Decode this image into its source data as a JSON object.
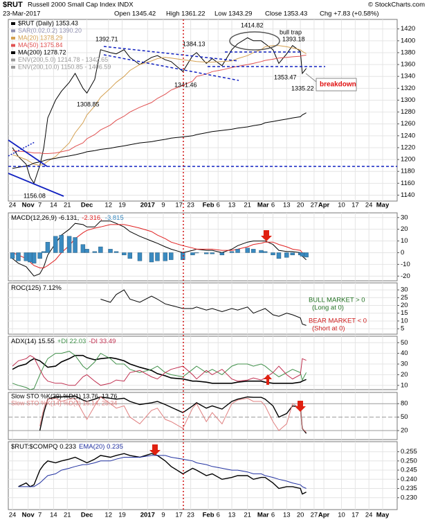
{
  "header": {
    "symbol": "$RUT",
    "name": "Russell 2000 Small Cap Index INDX",
    "source": "© StockCharts.com",
    "date": "23-Mar-2017",
    "open": "Open 1345.42",
    "high": "High 1361.22",
    "low": "Low 1343.29",
    "close": "Close 1353.43",
    "change": "Chg +7.83 (+0.58%)"
  },
  "chart_data": [
    {
      "type": "line",
      "grid": true,
      "x": [
        "2016-10-24",
        "2016-10-27",
        "2016-10-31",
        "2016-11-02",
        "2016-11-04",
        "2016-11-07",
        "2016-11-09",
        "2016-11-11",
        "2016-11-15",
        "2016-11-18",
        "2016-11-22",
        "2016-11-25",
        "2016-11-29",
        "2016-12-01",
        "2016-12-05",
        "2016-12-08",
        "2016-12-13",
        "2016-12-16",
        "2016-12-20",
        "2016-12-23",
        "2016-12-28",
        "2017-01-03",
        "2017-01-06",
        "2017-01-10",
        "2017-01-13",
        "2017-01-19",
        "2017-01-24",
        "2017-01-26",
        "2017-01-31",
        "2017-02-03",
        "2017-02-08",
        "2017-02-13",
        "2017-02-16",
        "2017-02-21",
        "2017-02-24",
        "2017-02-28",
        "2017-03-02",
        "2017-03-06",
        "2017-03-09",
        "2017-03-13",
        "2017-03-16",
        "2017-03-20",
        "2017-03-21",
        "2017-03-23"
      ],
      "xticks": [
        {
          "value": "2016-10-24",
          "label": "24"
        },
        {
          "value": "2016-11-01",
          "label": "Nov"
        },
        {
          "value": "2016-11-07",
          "label": "7"
        },
        {
          "value": "2016-11-14",
          "label": "14"
        },
        {
          "value": "2016-11-21",
          "label": "21"
        },
        {
          "value": "2016-12-01",
          "label": "Dec"
        },
        {
          "value": "2016-12-12",
          "label": "12"
        },
        {
          "value": "2016-12-19",
          "label": "19"
        },
        {
          "value": "2017-01-01",
          "label": "2017"
        },
        {
          "value": "2017-01-09",
          "label": "9"
        },
        {
          "value": "2017-01-17",
          "label": "17"
        },
        {
          "value": "2017-01-23",
          "label": "23"
        },
        {
          "value": "2017-02-01",
          "label": "Feb"
        },
        {
          "value": "2017-02-06",
          "label": "6"
        },
        {
          "value": "2017-02-13",
          "label": "13"
        },
        {
          "value": "2017-02-21",
          "label": "21"
        },
        {
          "value": "2017-03-01",
          "label": "Mar"
        },
        {
          "value": "2017-03-06",
          "label": "6"
        },
        {
          "value": "2017-03-13",
          "label": "13"
        },
        {
          "value": "2017-03-20",
          "label": "20"
        },
        {
          "value": "2017-03-27",
          "label": "27"
        },
        {
          "value": "2017-04-01",
          "label": "Apr"
        },
        {
          "value": "2017-04-10",
          "label": "10"
        },
        {
          "value": "2017-04-17",
          "label": "17"
        },
        {
          "value": "2017-04-24",
          "label": "24"
        },
        {
          "value": "2017-05-01",
          "label": "May"
        }
      ],
      "ylim": [
        1130,
        1436
      ],
      "yticks": [
        1140,
        1160,
        1180,
        1200,
        1220,
        1240,
        1260,
        1280,
        1300,
        1320,
        1340,
        1360,
        1380,
        1400,
        1420
      ],
      "series": [
        {
          "name": "$RUT (Daily) 1353.43",
          "color": "#000000",
          "values": [
            1220,
            1205,
            1192,
            1170,
            1160,
            1190,
            1220,
            1270,
            1300,
            1315,
            1330,
            1345,
            1320,
            1312,
            1335,
            1385,
            1380,
            1378,
            1385,
            1372,
            1360,
            1372,
            1375,
            1368,
            1365,
            1348,
            1375,
            1380,
            1362,
            1370,
            1358,
            1385,
            1395,
            1405,
            1400,
            1400,
            1395,
            1385,
            1362,
            1378,
            1392,
            1382,
            1345,
            1353.43
          ]
        },
        {
          "name": "MA(20) 1378.29",
          "color": "#d4a050",
          "values": [
            1208,
            1205,
            1200,
            1196,
            1192,
            1190,
            1192,
            1197,
            1205,
            1215,
            1228,
            1245,
            1262,
            1275,
            1290,
            1305,
            1320,
            1330,
            1340,
            1350,
            1360,
            1366,
            1370,
            1372,
            1371,
            1368,
            1366,
            1365,
            1364,
            1364,
            1365,
            1366,
            1370,
            1375,
            1380,
            1385,
            1390,
            1392,
            1392,
            1390,
            1388,
            1385,
            1382,
            1378.29
          ]
        },
        {
          "name": "MA(50) 1375.84",
          "color": "#e05050",
          "values": [
            1215,
            1214,
            1213,
            1212,
            1211,
            1211,
            1210,
            1210,
            1211,
            1213,
            1216,
            1222,
            1228,
            1235,
            1242,
            1250,
            1258,
            1266,
            1273,
            1280,
            1288,
            1296,
            1303,
            1310,
            1317,
            1325,
            1332,
            1340,
            1344,
            1348,
            1351,
            1355,
            1357,
            1360,
            1362,
            1365,
            1367,
            1369,
            1371,
            1372,
            1373,
            1374,
            1375,
            1375.84
          ]
        },
        {
          "name": "MA(200) 1278.72",
          "color": "#000000",
          "values": [
            1185,
            1187,
            1189,
            1191,
            1194,
            1196,
            1198,
            1200,
            1202,
            1204,
            1206,
            1208,
            1211,
            1213,
            1215,
            1217,
            1219,
            1221,
            1223,
            1225,
            1228,
            1230,
            1232,
            1234,
            1236,
            1238,
            1240,
            1242,
            1245,
            1247,
            1249,
            1251,
            1253,
            1255,
            1257,
            1259,
            1262,
            1264,
            1266,
            1268,
            1270,
            1272,
            1275,
            1278.72
          ]
        }
      ],
      "legend_extra": [
        {
          "text": "SAR(0.02,0.2) 1390.20",
          "color": "#9090b0"
        },
        {
          "text": "ENV(200,5.0) 1214.78 - 1342.65",
          "color": "#999999"
        },
        {
          "text": "ENV(200,10.0) 1150.85 - 1406.59",
          "color": "#999999"
        }
      ],
      "annotations": [
        "1392.71",
        "1384.13",
        "1414.82",
        "bull trap",
        "1393.18",
        "1353.47",
        "1335.22",
        "1341.46",
        "1308.85",
        "1156.08",
        "breakdown"
      ]
    },
    {
      "type": "line",
      "grid": true,
      "ylim": [
        -24,
        34
      ],
      "yticks": [
        -20,
        -10,
        0,
        10,
        20,
        30
      ],
      "series": [
        {
          "name": "MACD(12,26,9) -6.131,",
          "color": "#000000",
          "values": [
            -5,
            -9,
            -12,
            -16,
            -20,
            -18,
            -12,
            -2,
            8,
            15,
            20,
            25,
            24,
            22,
            22,
            27,
            27,
            25,
            22,
            18,
            14,
            10,
            8,
            5,
            3,
            0,
            2,
            3,
            2,
            2,
            0,
            3,
            6,
            9,
            10,
            10,
            10,
            7,
            2,
            1,
            1,
            0,
            -3,
            -6.131
          ]
        },
        {
          "name": "-2.316,",
          "color": "#e02020",
          "values": [
            0,
            -2,
            -5,
            -8,
            -11,
            -13,
            -13,
            -11,
            -6,
            0,
            6,
            12,
            17,
            19,
            21,
            22,
            24,
            24,
            24,
            23,
            21,
            18,
            15,
            12,
            9,
            6,
            4,
            3,
            3,
            3,
            2,
            2,
            3,
            5,
            7,
            8,
            9,
            9,
            7,
            5,
            3,
            2,
            0,
            -2.316
          ]
        },
        {
          "name": "-3.815",
          "color": "#3a8ac0",
          "type": "bar",
          "values": [
            -5,
            -7,
            -7,
            -8,
            -9,
            -5,
            1,
            9,
            14,
            15,
            14,
            13,
            7,
            3,
            1,
            5,
            3,
            1,
            -2,
            -5,
            -7,
            -8,
            -7,
            -7,
            -6,
            -6,
            -2,
            0,
            -1,
            -1,
            -2,
            1,
            3,
            4,
            3,
            2,
            1,
            -2,
            -5,
            -4,
            -2,
            -2,
            -3,
            -3.815
          ]
        }
      ]
    },
    {
      "type": "line",
      "grid": true,
      "ylim": [
        1.5,
        34.5
      ],
      "yticks": [
        5,
        10,
        15,
        20,
        25,
        30
      ],
      "series": [
        {
          "name": "ROC(125) 7.12%",
          "color": "#000000",
          "values": [
            null,
            null,
            null,
            null,
            null,
            null,
            null,
            null,
            null,
            null,
            null,
            null,
            null,
            null,
            null,
            24,
            22,
            27,
            30,
            24,
            22,
            26,
            24,
            21,
            20,
            18,
            18,
            19,
            17,
            18,
            16,
            18,
            17,
            19,
            15,
            17,
            18,
            14,
            13,
            15,
            14,
            12,
            8,
            7.12
          ]
        }
      ],
      "annotations": [
        {
          "text": "BULL MARKET > 0",
          "color": "#207020"
        },
        {
          "text": "(Long at 0)",
          "color": "#207020"
        },
        {
          "text": "BEAR MARKET < 0",
          "color": "#d02020"
        },
        {
          "text": "(Short at 0)",
          "color": "#d02020"
        }
      ]
    },
    {
      "type": "line",
      "grid": true,
      "ylim": [
        6,
        56
      ],
      "yticks": [
        10,
        20,
        30,
        40,
        50
      ],
      "series": [
        {
          "name": "ADX(14) 15.55",
          "color": "#000000",
          "width": 1.6,
          "values": [
            25,
            28,
            30,
            33,
            35,
            33,
            30,
            27,
            28,
            32,
            35,
            38,
            38,
            36,
            34,
            35,
            36,
            35,
            33,
            30,
            27,
            24,
            21,
            19,
            17,
            16,
            14,
            14,
            13,
            12,
            12,
            12,
            13,
            14,
            14,
            14,
            13,
            12,
            12,
            12,
            12,
            13,
            14,
            15.55
          ]
        },
        {
          "name": "+DI 22.03",
          "color": "#40904a",
          "values": [
            12,
            10,
            8,
            6,
            7,
            20,
            28,
            35,
            40,
            40,
            42,
            38,
            28,
            25,
            32,
            40,
            35,
            30,
            30,
            25,
            22,
            25,
            28,
            22,
            20,
            18,
            25,
            28,
            22,
            25,
            20,
            28,
            30,
            30,
            28,
            30,
            28,
            22,
            18,
            22,
            25,
            22,
            15,
            22.03
          ]
        },
        {
          "name": "-DI 33.49",
          "color": "#c03050",
          "values": [
            28,
            33,
            35,
            38,
            36,
            25,
            18,
            14,
            12,
            12,
            10,
            10,
            18,
            20,
            14,
            10,
            12,
            15,
            14,
            22,
            24,
            18,
            16,
            22,
            25,
            28,
            20,
            16,
            24,
            20,
            25,
            16,
            14,
            15,
            17,
            15,
            17,
            22,
            28,
            20,
            16,
            20,
            35,
            33.49
          ]
        }
      ]
    },
    {
      "type": "line",
      "grid": true,
      "ylim": [
        0,
        105
      ],
      "yticks": [
        20,
        50,
        80
      ],
      "series": [
        {
          "name": "Slow STO %K(39) %D(1) 13.76, 13.76",
          "color": "#000000",
          "width": 1.4,
          "values": [
            null,
            null,
            null,
            null,
            null,
            20,
            60,
            90,
            95,
            95,
            96,
            97,
            88,
            85,
            90,
            95,
            92,
            90,
            92,
            85,
            78,
            82,
            85,
            78,
            72,
            60,
            75,
            82,
            70,
            75,
            68,
            85,
            90,
            95,
            94,
            94,
            90,
            75,
            50,
            58,
            75,
            72,
            25,
            13.76
          ]
        },
        {
          "name": "Slow STO %K(14) %D(3) 16.14, 25.34",
          "color": "#e08080",
          "values": [
            null,
            null,
            null,
            null,
            null,
            30,
            70,
            90,
            92,
            85,
            90,
            92,
            60,
            45,
            75,
            95,
            80,
            70,
            75,
            50,
            35,
            65,
            70,
            45,
            40,
            25,
            70,
            80,
            40,
            60,
            35,
            80,
            88,
            92,
            85,
            85,
            75,
            40,
            20,
            35,
            80,
            70,
            25,
            16.14
          ]
        }
      ]
    },
    {
      "type": "line",
      "grid": true,
      "ylim": [
        0.2235,
        0.2605
      ],
      "yticks": [
        {
          "value": 0.23,
          "label": "0.230"
        },
        0.235,
        {
          "value": 0.24,
          "label": "0.240"
        },
        0.245,
        {
          "value": 0.25,
          "label": "0.250"
        },
        0.255
      ],
      "series": [
        {
          "name": "$RUT:$COMPQ 0.233",
          "color": "#000000",
          "width": 1.4,
          "values": [
            null,
            0.236,
            0.238,
            0.236,
            0.237,
            0.245,
            0.248,
            0.25,
            0.249,
            0.25,
            0.251,
            0.252,
            0.25,
            0.249,
            0.251,
            0.253,
            0.252,
            0.253,
            0.254,
            0.253,
            0.252,
            0.254,
            0.253,
            0.25,
            0.247,
            0.243,
            0.246,
            0.245,
            0.242,
            0.243,
            0.24,
            0.241,
            0.242,
            0.242,
            0.24,
            0.241,
            0.241,
            0.238,
            0.235,
            0.236,
            0.236,
            0.235,
            0.232,
            0.233
          ]
        },
        {
          "name": "EMA(20) 0.235",
          "color": "#2030a0",
          "values": [
            null,
            0.236,
            0.236,
            0.236,
            0.236,
            0.238,
            0.24,
            0.242,
            0.243,
            0.245,
            0.246,
            0.247,
            0.248,
            0.248,
            0.249,
            0.25,
            0.25,
            0.251,
            0.252,
            0.252,
            0.252,
            0.253,
            0.253,
            0.253,
            0.252,
            0.251,
            0.25,
            0.249,
            0.248,
            0.247,
            0.246,
            0.245,
            0.245,
            0.244,
            0.243,
            0.243,
            0.242,
            0.241,
            0.24,
            0.239,
            0.238,
            0.237,
            0.236,
            0.235
          ]
        }
      ]
    }
  ]
}
